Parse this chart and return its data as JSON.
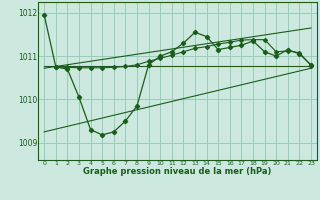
{
  "title": "Graphe pression niveau de la mer (hPa)",
  "bg_color": "#cce8df",
  "grid_color": "#99ccbb",
  "line_color": "#1a5c1a",
  "xlim": [
    -0.5,
    23.5
  ],
  "ylim": [
    1008.6,
    1012.25
  ],
  "yticks": [
    1009,
    1010,
    1011,
    1012
  ],
  "xticks": [
    0,
    1,
    2,
    3,
    4,
    5,
    6,
    7,
    8,
    9,
    10,
    11,
    12,
    13,
    14,
    15,
    16,
    17,
    18,
    19,
    20,
    21,
    22,
    23
  ],
  "main_x": [
    0,
    1,
    2,
    3,
    4,
    5,
    6,
    7,
    8,
    9,
    10,
    11,
    12,
    13,
    14,
    15,
    16,
    17,
    18,
    19,
    20,
    21,
    22,
    23
  ],
  "main_y": [
    1011.95,
    1010.75,
    1010.7,
    1010.05,
    1009.3,
    1009.18,
    1009.25,
    1009.5,
    1009.85,
    1010.8,
    1011.0,
    1011.1,
    1011.3,
    1011.55,
    1011.45,
    1011.15,
    1011.2,
    1011.25,
    1011.35,
    1011.1,
    1011.0,
    1011.15,
    1011.05,
    1010.8
  ],
  "trend1_x": [
    0,
    23
  ],
  "trend1_y": [
    1010.78,
    1010.78
  ],
  "trend2_x": [
    0,
    23
  ],
  "trend2_y": [
    1010.72,
    1011.65
  ],
  "trend3_x": [
    0,
    23
  ],
  "trend3_y": [
    1009.25,
    1010.72
  ],
  "smooth_x": [
    1,
    2,
    3,
    4,
    5,
    6,
    7,
    8,
    9,
    10,
    11,
    12,
    13,
    14,
    15,
    16,
    17,
    18,
    19,
    20,
    21,
    22,
    23
  ],
  "smooth_y": [
    1010.75,
    1010.74,
    1010.73,
    1010.73,
    1010.73,
    1010.74,
    1010.76,
    1010.8,
    1010.88,
    1010.95,
    1011.02,
    1011.1,
    1011.18,
    1011.22,
    1011.28,
    1011.32,
    1011.37,
    1011.38,
    1011.38,
    1011.1,
    1011.12,
    1011.08,
    1010.78
  ]
}
